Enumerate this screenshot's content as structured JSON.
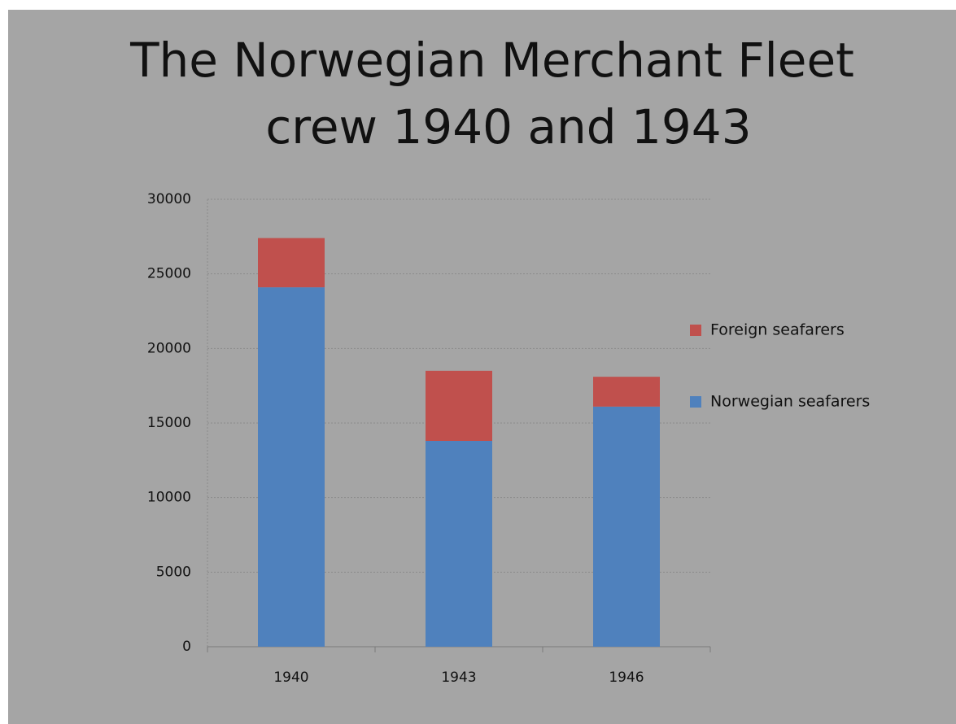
{
  "chart_data": {
    "type": "stacked_bar",
    "title": [
      "The Norwegian Merchant Fleet",
      "crew 1940 and 1943"
    ],
    "categories": [
      "1940",
      "1943",
      "1946"
    ],
    "series": [
      {
        "name": "Norwegian seafarers",
        "color": "#4f81bd",
        "values": [
          24100,
          13800,
          16100
        ]
      },
      {
        "name": "Foreign seafarers",
        "color": "#c0504d",
        "values": [
          3300,
          4700,
          2000
        ]
      }
    ],
    "ylim": [
      0,
      30000
    ],
    "yticks": [
      0,
      5000,
      10000,
      15000,
      20000,
      25000,
      30000
    ],
    "grid": true,
    "legend": "right"
  }
}
